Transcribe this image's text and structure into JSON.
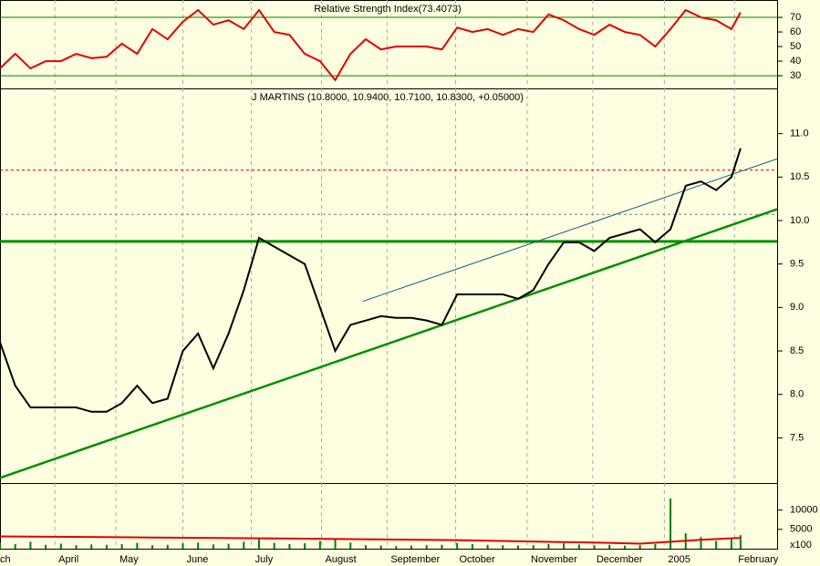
{
  "chart_data": [
    {
      "type": "line",
      "title": "Relative Strength Index(73.4073)",
      "xlim": [
        0,
        51
      ],
      "ylim": [
        21.3,
        81.9
      ],
      "yticks": [
        30,
        40,
        50,
        60,
        70
      ],
      "hlines": [
        {
          "value": 70,
          "color": "#008000"
        },
        {
          "value": 30,
          "color": "#008000"
        }
      ],
      "x": [
        0,
        1,
        2,
        3,
        4,
        5,
        6,
        7,
        8,
        9,
        10,
        11,
        12,
        13,
        14,
        15,
        16,
        17,
        18,
        19,
        20,
        21,
        22,
        23,
        24,
        25,
        26,
        27,
        28,
        29,
        30,
        31,
        32,
        33,
        34,
        35,
        36,
        37,
        38,
        39,
        40,
        41,
        42,
        43,
        44,
        45,
        46,
        47,
        48,
        48.6
      ],
      "series": [
        {
          "color": "#e00000",
          "values": [
            35,
            45,
            35,
            40,
            40,
            45,
            42,
            43,
            52,
            45,
            62,
            55,
            67,
            75,
            65,
            68,
            62,
            75,
            60,
            58,
            45,
            40,
            27,
            45,
            55,
            48,
            50,
            50,
            50,
            48,
            63,
            60,
            62,
            58,
            62,
            60,
            72,
            68,
            62,
            58,
            65,
            60,
            58,
            50,
            62,
            75,
            70,
            68,
            62,
            73.4073
          ]
        }
      ]
    },
    {
      "type": "line",
      "title": "J MARTINS (10.8000, 10.9400, 10.7100, 10.8300, +0.05000)",
      "xlim": [
        0,
        51
      ],
      "ylim": [
        6.98,
        11.52
      ],
      "yticks": [
        {
          "value": 7.5,
          "label": "7.5"
        },
        {
          "value": 8,
          "label": "8.0"
        },
        {
          "value": 8.5,
          "label": "8.5"
        },
        {
          "value": 9,
          "label": "9.0"
        },
        {
          "value": 9.5,
          "label": "9.5"
        },
        {
          "value": 10,
          "label": "10.0"
        },
        {
          "value": 10.5,
          "label": "10.5"
        },
        {
          "value": 11,
          "label": "11.0"
        }
      ],
      "hlines": [
        {
          "value": 10.58,
          "color": "#e00000",
          "dash": true
        },
        {
          "value": 10.07,
          "color": "#808080",
          "dash": true
        },
        {
          "value": 9.76,
          "color": "#009000",
          "width": 3
        }
      ],
      "lines": [
        {
          "x": [
            0,
            51
          ],
          "y": [
            7.04,
            10.13
          ],
          "color": "#009000",
          "width": 2.5
        },
        {
          "x": [
            23.8,
            51
          ],
          "y": [
            9.07,
            10.71
          ],
          "color": "#1a5a8a",
          "width": 1
        }
      ],
      "x": [
        0,
        1,
        2,
        3,
        4,
        5,
        6,
        7,
        8,
        9,
        10,
        11,
        12,
        13,
        14,
        15,
        16,
        17,
        18,
        19,
        20,
        21,
        22,
        23,
        24,
        25,
        26,
        27,
        28,
        29,
        30,
        31,
        32,
        33,
        34,
        35,
        36,
        37,
        38,
        39,
        40,
        41,
        42,
        43,
        44,
        45,
        46,
        47,
        48,
        48.6
      ],
      "series": [
        {
          "color": "#000000",
          "values": [
            8.6,
            8.1,
            7.85,
            7.85,
            7.85,
            7.85,
            7.8,
            7.8,
            7.9,
            8.1,
            7.9,
            7.95,
            8.5,
            8.7,
            8.3,
            8.7,
            9.2,
            9.8,
            9.7,
            9.6,
            9.5,
            9.0,
            8.5,
            8.8,
            8.85,
            8.9,
            8.88,
            8.88,
            8.85,
            8.8,
            9.15,
            9.15,
            9.15,
            9.15,
            9.1,
            9.2,
            9.5,
            9.75,
            9.75,
            9.65,
            9.8,
            9.85,
            9.9,
            9.75,
            9.9,
            10.4,
            10.45,
            10.35,
            10.5,
            10.83
          ]
        }
      ]
    },
    {
      "type": "bar",
      "xlim": [
        0,
        51
      ],
      "ylim": [
        0,
        17000
      ],
      "yticks": [
        5000,
        10000
      ],
      "unit_label": "x100",
      "xticks": [
        {
          "value": -0.4,
          "label": "ch"
        },
        {
          "value": 3.6,
          "label": "April"
        },
        {
          "value": 7.6,
          "label": "May"
        },
        {
          "value": 12,
          "label": "June"
        },
        {
          "value": 16.5,
          "label": "July"
        },
        {
          "value": 21.1,
          "label": "August"
        },
        {
          "value": 25.4,
          "label": "September"
        },
        {
          "value": 29.9,
          "label": "October"
        },
        {
          "value": 34.6,
          "label": "November"
        },
        {
          "value": 38.9,
          "label": "December"
        },
        {
          "value": 43.6,
          "label": "2005"
        },
        {
          "value": 48.2,
          "label": "February"
        }
      ],
      "x": [
        0,
        1,
        2,
        3,
        4,
        5,
        6,
        7,
        8,
        9,
        10,
        11,
        12,
        13,
        14,
        15,
        16,
        17,
        18,
        19,
        20,
        21,
        22,
        23,
        24,
        25,
        26,
        27,
        28,
        29,
        30,
        31,
        32,
        33,
        34,
        35,
        36,
        37,
        38,
        39,
        40,
        41,
        42,
        43,
        44,
        45,
        46,
        47,
        48,
        48.6
      ],
      "series": [
        {
          "color": "#008000",
          "values": [
            1500,
            1200,
            1800,
            1000,
            1300,
            900,
            1100,
            1000,
            1200,
            1500,
            900,
            1000,
            1400,
            1600,
            1100,
            1300,
            1800,
            2500,
            1500,
            1200,
            1400,
            2000,
            2500,
            1600,
            900,
            800,
            700,
            800,
            900,
            1000,
            1500,
            1200,
            1000,
            900,
            800,
            900,
            1200,
            1400,
            1100,
            900,
            1000,
            800,
            900,
            1200,
            13000,
            4000,
            3000,
            2000,
            2500,
            3500
          ]
        },
        {
          "type": "line",
          "color": "#e00000",
          "x": [
            0,
            10,
            20,
            30,
            40,
            42,
            44,
            46,
            48.6
          ],
          "values": [
            3200,
            2900,
            2600,
            2200,
            1500,
            1300,
            1800,
            2300,
            2800
          ]
        }
      ]
    }
  ]
}
